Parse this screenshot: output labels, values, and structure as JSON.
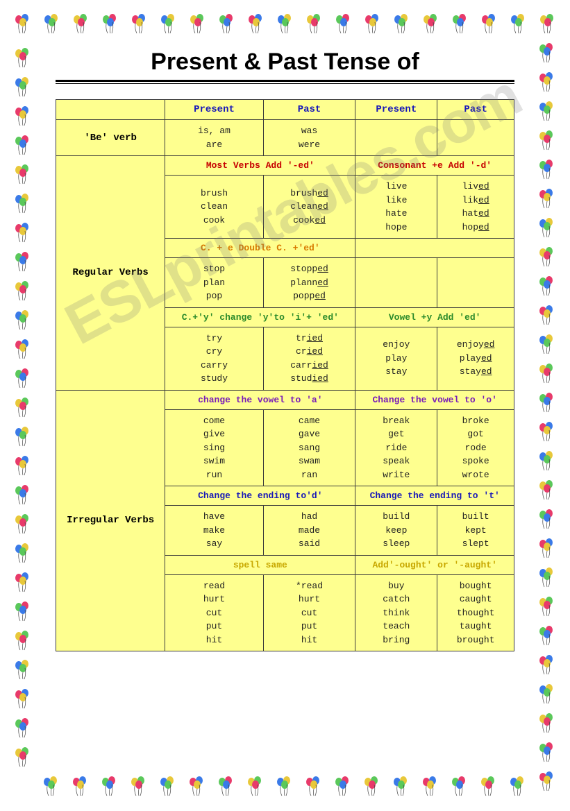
{
  "title": "Present & Past Tense of",
  "watermark": "ESLprintables.com",
  "headers": {
    "present1": "Present",
    "past1": "Past",
    "present2": "Present",
    "past2": "Past"
  },
  "rowLabels": {
    "be": "'Be' verb",
    "regular": "Regular Verbs",
    "irregular": "Irregular Verbs"
  },
  "be": {
    "present": [
      "is, am",
      "are"
    ],
    "past": [
      "was",
      "were"
    ]
  },
  "rules": {
    "mostVerbsEd": "Most Verbs Add '-ed'",
    "consonantE": "Consonant +e Add '-d'",
    "doubleC": "C. + e Double C. +'ed'",
    "yToI": "C.+'y' change 'y'to 'i'+ 'ed'",
    "vowelY": "Vowel +y Add 'ed'",
    "vowelA": "change the vowel to 'a'",
    "vowelO": "Change the vowel to 'o'",
    "endingD": "Change the ending to'd'",
    "endingT": "Change the ending to 't'",
    "spellSame": "spell same",
    "oughtAught": "Add'-ought' or '-aught'"
  },
  "regular": {
    "mostVerbs": {
      "present": [
        "brush",
        "clean",
        "cook"
      ],
      "past": [
        "brush|ed",
        "clean|ed",
        "cook|ed"
      ]
    },
    "consonantE": {
      "present": [
        "live",
        "like",
        "hate",
        "hope"
      ],
      "past": [
        "liv|ed",
        "lik|ed",
        "hat|ed",
        "hop|ed"
      ]
    },
    "doubleC": {
      "present": [
        "stop",
        "plan",
        "pop"
      ],
      "past": [
        "stopp|ed",
        "plann|ed",
        "popp|ed"
      ]
    },
    "yToI": {
      "present": [
        "try",
        "cry",
        "carry",
        "study"
      ],
      "past": [
        "tr|ied",
        "cr|ied",
        "carr|ied",
        "stud|ied"
      ]
    },
    "vowelY": {
      "present": [
        "enjoy",
        "play",
        "stay"
      ],
      "past": [
        "enjoy|ed",
        "play|ed",
        "stay|ed"
      ]
    }
  },
  "irregular": {
    "vowelA": {
      "present": [
        "come",
        "give",
        "sing",
        "swim",
        "run"
      ],
      "past": [
        "came",
        "gave",
        "sang",
        "swam",
        "ran"
      ]
    },
    "vowelO": {
      "present": [
        "break",
        "get",
        "ride",
        "speak",
        "write"
      ],
      "past": [
        "broke",
        "got",
        "rode",
        "spoke",
        "wrote"
      ]
    },
    "endingD": {
      "present": [
        "have",
        "make",
        "say"
      ],
      "past": [
        "had",
        "made",
        "said"
      ]
    },
    "endingT": {
      "present": [
        "build",
        "keep",
        "sleep"
      ],
      "past": [
        "built",
        "kept",
        "slept"
      ]
    },
    "spellSame": {
      "present": [
        "read",
        "hurt",
        "cut",
        "put",
        "hit"
      ],
      "past": [
        "*read",
        "hurt",
        "cut",
        "put",
        "hit"
      ]
    },
    "oughtAught": {
      "present": [
        "buy",
        "catch",
        "think",
        "teach",
        "bring"
      ],
      "past": [
        "bought",
        "caught",
        "thought",
        "taught",
        "brought"
      ]
    }
  },
  "balloonColors": [
    "#e83a6a",
    "#3a7ae8",
    "#e8c83a",
    "#5ac85a"
  ]
}
